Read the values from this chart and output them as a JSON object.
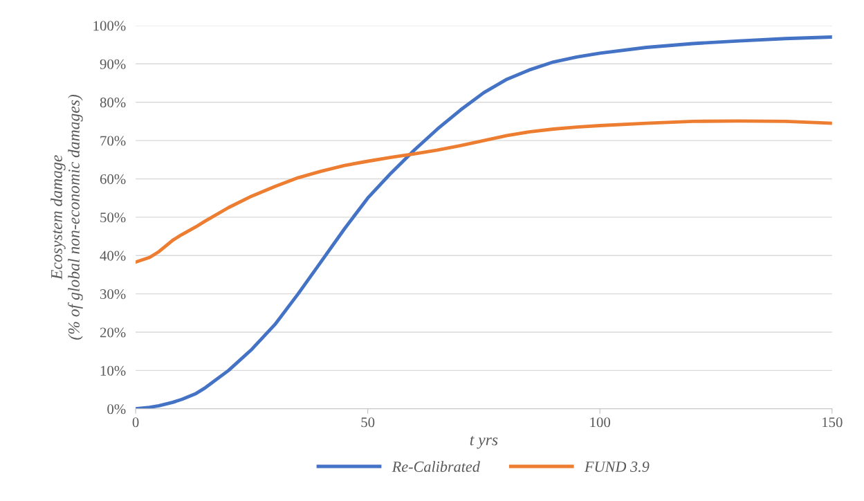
{
  "chart_data": {
    "type": "line",
    "xlabel": "t yrs",
    "ylabel": "Ecosystem damage\n(% of global non-economic damages)",
    "x": [
      0,
      3,
      5,
      8,
      10,
      13,
      15,
      20,
      25,
      30,
      35,
      40,
      45,
      50,
      55,
      60,
      65,
      70,
      75,
      80,
      85,
      90,
      95,
      100,
      110,
      120,
      130,
      140,
      150
    ],
    "series": [
      {
        "name": "Re-Calibrated",
        "color": "#4472c4",
        "values": [
          0,
          0.4,
          0.8,
          1.7,
          2.5,
          4.0,
          5.5,
          10,
          15.5,
          22,
          30,
          38.5,
          47,
          55,
          61.5,
          67.5,
          73,
          78,
          82.5,
          86,
          88.5,
          90.5,
          91.8,
          92.8,
          94.3,
          95.3,
          96,
          96.6,
          97
        ]
      },
      {
        "name": "FUND 3.9",
        "color": "#ed7d31",
        "values": [
          38.3,
          39.5,
          41,
          44,
          45.5,
          47.5,
          49,
          52.5,
          55.5,
          58,
          60.3,
          62,
          63.5,
          64.6,
          65.6,
          66.5,
          67.5,
          68.7,
          70,
          71.3,
          72.3,
          73,
          73.5,
          73.9,
          74.5,
          75,
          75.1,
          75,
          74.5
        ]
      }
    ],
    "xlim": [
      0,
      150
    ],
    "xticks": [
      0,
      50,
      100,
      150
    ],
    "ylim": [
      0,
      100
    ],
    "yticks": [
      {
        "value": 0,
        "label": "0%"
      },
      {
        "value": 10,
        "label": "10%"
      },
      {
        "value": 20,
        "label": "20%"
      },
      {
        "value": 30,
        "label": "30%"
      },
      {
        "value": 40,
        "label": "40%"
      },
      {
        "value": 50,
        "label": "50%"
      },
      {
        "value": 60,
        "label": "60%"
      },
      {
        "value": 70,
        "label": "70%"
      },
      {
        "value": 80,
        "label": "80%"
      },
      {
        "value": 90,
        "label": "90%"
      },
      {
        "value": 100,
        "label": "100%"
      }
    ],
    "grid": "y",
    "legend": "bottom",
    "marker": "none",
    "line_style": "solid"
  }
}
